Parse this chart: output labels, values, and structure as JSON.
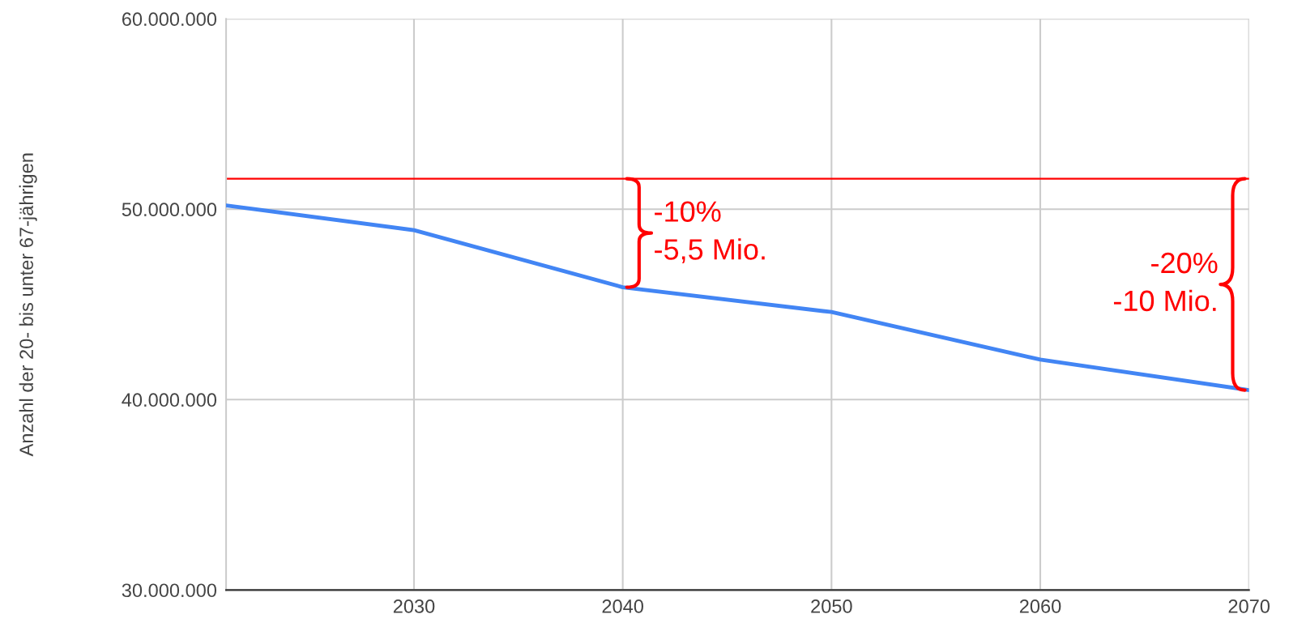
{
  "chart_data": {
    "type": "line",
    "ylabel": "Anzahl der 20- bis unter 67-jährigen",
    "x": [
      2021,
      2030,
      2040,
      2050,
      2060,
      2070
    ],
    "series": [
      {
        "color": "#4285f4",
        "values": [
          50200000,
          48900000,
          45900000,
          44600000,
          42100000,
          40500000
        ]
      }
    ],
    "xlim": [
      2021,
      2070
    ],
    "xticks": [
      2030,
      2040,
      2050,
      2060,
      2070
    ],
    "ylim": [
      30000000,
      60000000
    ],
    "yticks": [
      {
        "value": 30000000,
        "label": "30.000.000"
      },
      {
        "value": 40000000,
        "label": "40.000.000"
      },
      {
        "value": 50000000,
        "label": "50.000.000"
      },
      {
        "value": 60000000,
        "label": "60.000.000"
      }
    ],
    "ref_lines": [
      {
        "axis": "y",
        "value": 51600000,
        "color": "#ff0000"
      }
    ],
    "annotations": [
      {
        "text": "-10%\n-5,5 Mio.",
        "x": 2040,
        "y": 45900000
      },
      {
        "text": "-20%\n-10 Mio.",
        "x": 2070,
        "y": 40500000
      }
    ],
    "grid": true,
    "marker": "none",
    "line_style": "solid"
  }
}
